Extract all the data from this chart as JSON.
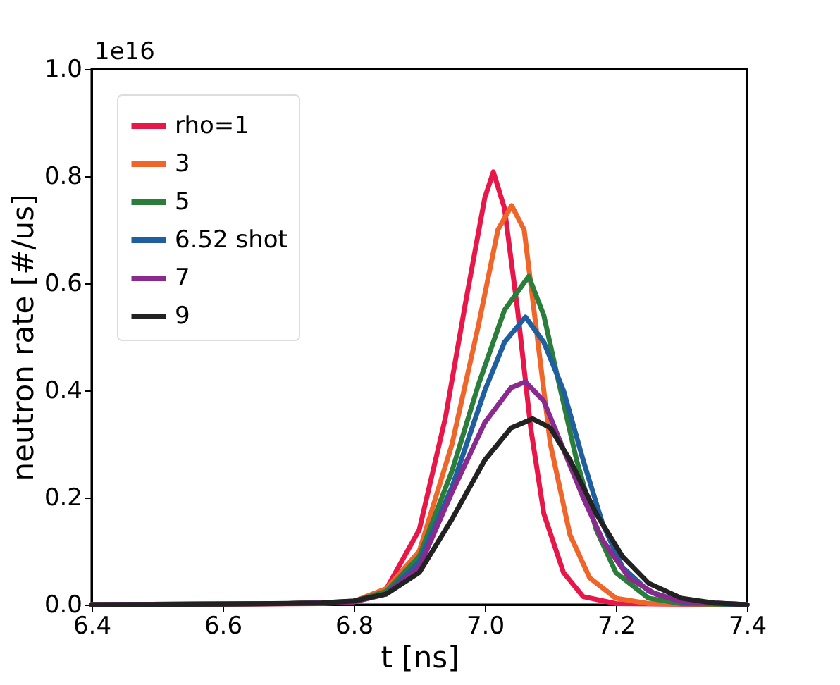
{
  "chart_data": {
    "type": "line",
    "xlabel": "t  [ns]",
    "ylabel": "neutron rate  [#/us]",
    "annotations": [
      "1e16"
    ],
    "xlim": [
      6.4,
      7.4
    ],
    "xticks": [
      6.4,
      6.6,
      6.8,
      {
        "value": 7,
        "label": "7.0"
      },
      7.2,
      7.4
    ],
    "ylim": [
      0,
      1.0
    ],
    "yticks": [
      {
        "value": 0,
        "label": "0.0"
      },
      0.2,
      0.4,
      0.6,
      0.8,
      {
        "value": 1,
        "label": "1.0"
      }
    ],
    "grid": false,
    "legend": "top left",
    "line_style": "solid",
    "marker": "none",
    "series": [
      {
        "name": "rho=1",
        "color": "#e8174a",
        "x": [
          6.4,
          6.6,
          6.75,
          6.8,
          6.85,
          6.9,
          6.94,
          6.97,
          7.0,
          7.013,
          7.03,
          7.05,
          7.07,
          7.09,
          7.12,
          7.15,
          7.2,
          7.4
        ],
        "values": [
          0,
          0.001,
          0.002,
          0.005,
          0.03,
          0.14,
          0.35,
          0.56,
          0.76,
          0.808,
          0.74,
          0.55,
          0.33,
          0.17,
          0.06,
          0.015,
          0.002,
          0
        ]
      },
      {
        "name": "3",
        "color": "#f0662a",
        "x": [
          6.4,
          6.7,
          6.8,
          6.85,
          6.9,
          6.95,
          6.99,
          7.02,
          7.041,
          7.06,
          7.08,
          7.1,
          7.13,
          7.16,
          7.2,
          7.25,
          7.4
        ],
        "values": [
          0,
          0.002,
          0.006,
          0.03,
          0.1,
          0.3,
          0.52,
          0.7,
          0.745,
          0.7,
          0.5,
          0.3,
          0.13,
          0.05,
          0.012,
          0.002,
          0
        ]
      },
      {
        "name": "5",
        "color": "#2a7d3b",
        "x": [
          6.4,
          6.7,
          6.8,
          6.85,
          6.9,
          6.95,
          6.99,
          7.03,
          7.067,
          7.09,
          7.11,
          7.14,
          7.17,
          7.2,
          7.25,
          7.3,
          7.4
        ],
        "values": [
          0,
          0.002,
          0.006,
          0.025,
          0.09,
          0.25,
          0.41,
          0.55,
          0.613,
          0.54,
          0.43,
          0.27,
          0.14,
          0.06,
          0.012,
          0.002,
          0
        ]
      },
      {
        "name": "6.52 shot",
        "color": "#1f5fa0",
        "x": [
          6.8,
          6.85,
          6.9,
          6.95,
          7.0,
          7.03,
          7.062,
          7.09,
          7.12,
          7.15,
          7.18,
          7.21,
          7.25,
          7.3,
          7.4
        ],
        "values": [
          0.006,
          0.02,
          0.08,
          0.22,
          0.4,
          0.49,
          0.537,
          0.49,
          0.4,
          0.27,
          0.15,
          0.07,
          0.025,
          0.005,
          0
        ]
      },
      {
        "name": "7",
        "color": "#8b2a8e",
        "x": [
          6.4,
          6.7,
          6.8,
          6.85,
          6.9,
          6.95,
          7.0,
          7.04,
          7.062,
          7.09,
          7.12,
          7.15,
          7.18,
          7.22,
          7.26,
          7.3,
          7.4
        ],
        "values": [
          0,
          0.002,
          0.005,
          0.02,
          0.07,
          0.21,
          0.34,
          0.405,
          0.416,
          0.38,
          0.29,
          0.2,
          0.12,
          0.05,
          0.02,
          0.006,
          0
        ]
      },
      {
        "name": "9",
        "color": "#222222",
        "x": [
          6.4,
          6.6,
          6.75,
          6.8,
          6.85,
          6.9,
          6.95,
          7.0,
          7.04,
          7.073,
          7.1,
          7.13,
          7.17,
          7.21,
          7.25,
          7.3,
          7.35,
          7.4
        ],
        "values": [
          0,
          0.001,
          0.003,
          0.007,
          0.02,
          0.06,
          0.16,
          0.27,
          0.33,
          0.347,
          0.33,
          0.27,
          0.17,
          0.09,
          0.04,
          0.012,
          0.003,
          0
        ]
      }
    ]
  }
}
